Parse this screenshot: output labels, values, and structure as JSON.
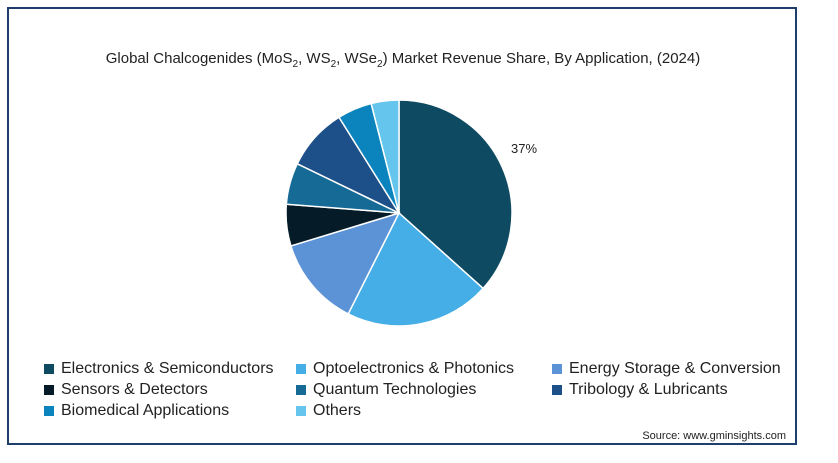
{
  "title": {
    "prefix": "Global Chalcogenides (MoS",
    "sub1": "2",
    "mid1": ", WS",
    "sub2": "2",
    "mid2": ", WSe",
    "sub3": "2",
    "suffix": ") Market Revenue Share, By Application,  (2024)"
  },
  "source": "Source: www.gminsights.com",
  "chart_data": {
    "type": "pie",
    "title": "Global Chalcogenides (MoS2, WS2, WSe2) Market Revenue Share, By Application,  (2024)",
    "slices": [
      {
        "label": "Electronics & Semiconductors",
        "value": 37,
        "color": "#0f4a63"
      },
      {
        "label": "Optoelectronics & Photonics",
        "value": 21,
        "color": "#45aee6"
      },
      {
        "label": "Energy Storage & Conversion",
        "value": 13,
        "color": "#5c93d6"
      },
      {
        "label": "Sensors & Detectors",
        "value": 6,
        "color": "#051c28"
      },
      {
        "label": "Quantum Technologies",
        "value": 6,
        "color": "#166b96"
      },
      {
        "label": "Tribology & Lubricants",
        "value": 9,
        "color": "#1d4f88"
      },
      {
        "label": "Biomedical Applications",
        "value": 5,
        "color": "#0b84bd"
      },
      {
        "label": "Others",
        "value": 4,
        "color": "#66c5ec"
      }
    ],
    "data_labels": [
      {
        "slice": "Electronics & Semiconductors",
        "text": "37%"
      }
    ],
    "legend_position": "bottom"
  }
}
